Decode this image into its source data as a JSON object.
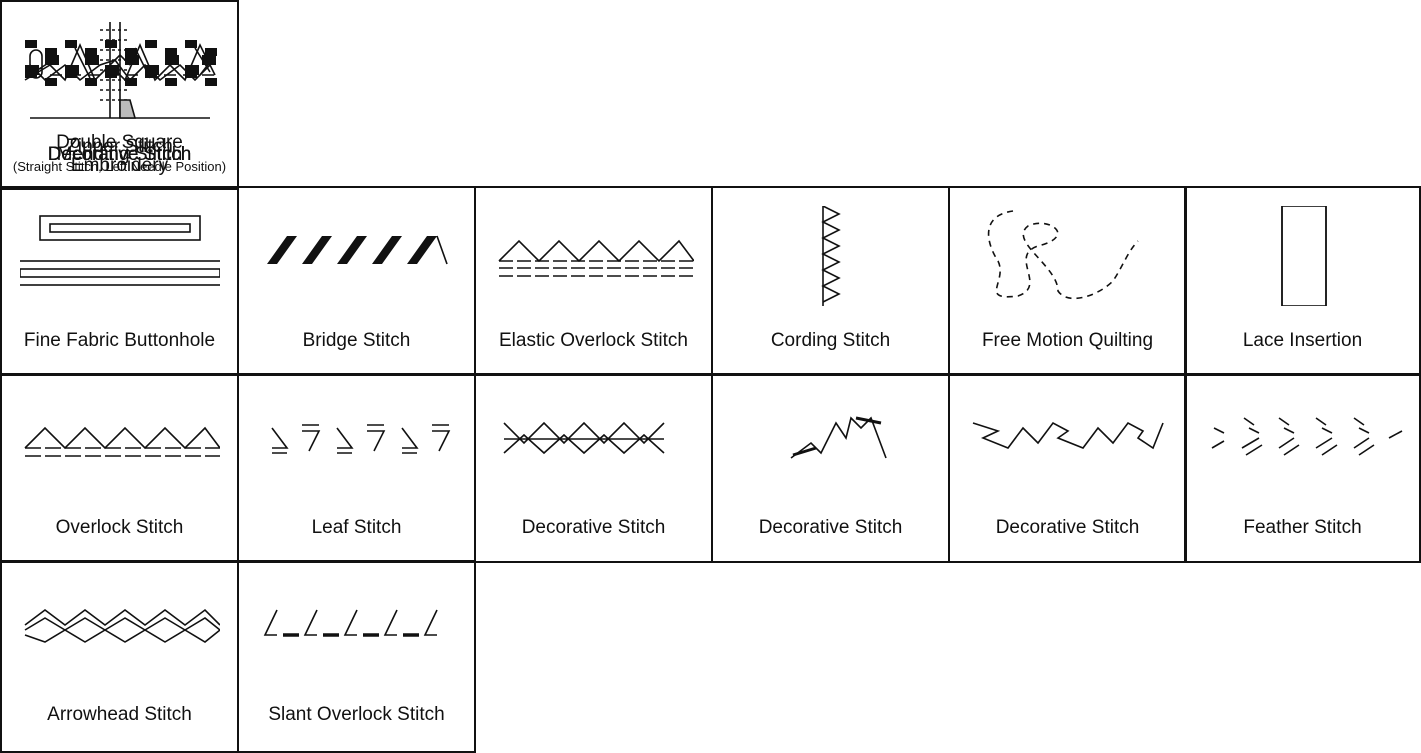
{
  "cells": [
    {
      "label": "Decorative Stitch"
    },
    {
      "label": "Mending Stitch"
    },
    {
      "label": "Double Square Embroidery"
    },
    {
      "label": "Decorative Stitch"
    },
    {
      "label": "Zipper Stitch",
      "note": "(Straight Stitch, Left Needle Position)"
    },
    {
      "label": "Decorative Stitch"
    },
    {
      "label": "Fine Fabric Buttonhole"
    },
    {
      "label": "Bridge Stitch"
    },
    {
      "label": "Elastic Overlock Stitch"
    },
    {
      "label": "Cording Stitch"
    },
    {
      "label": "Free Motion Quilting"
    },
    {
      "label": "Lace Insertion"
    },
    {
      "label": "Overlock Stitch"
    },
    {
      "label": "Leaf Stitch"
    },
    {
      "label": "Decorative Stitch"
    },
    {
      "label": "Decorative Stitch"
    },
    {
      "label": "Decorative Stitch"
    },
    {
      "label": "Feather Stitch"
    },
    {
      "label": "Arrowhead Stitch"
    },
    {
      "label": "Slant Overlock Stitch"
    }
  ]
}
